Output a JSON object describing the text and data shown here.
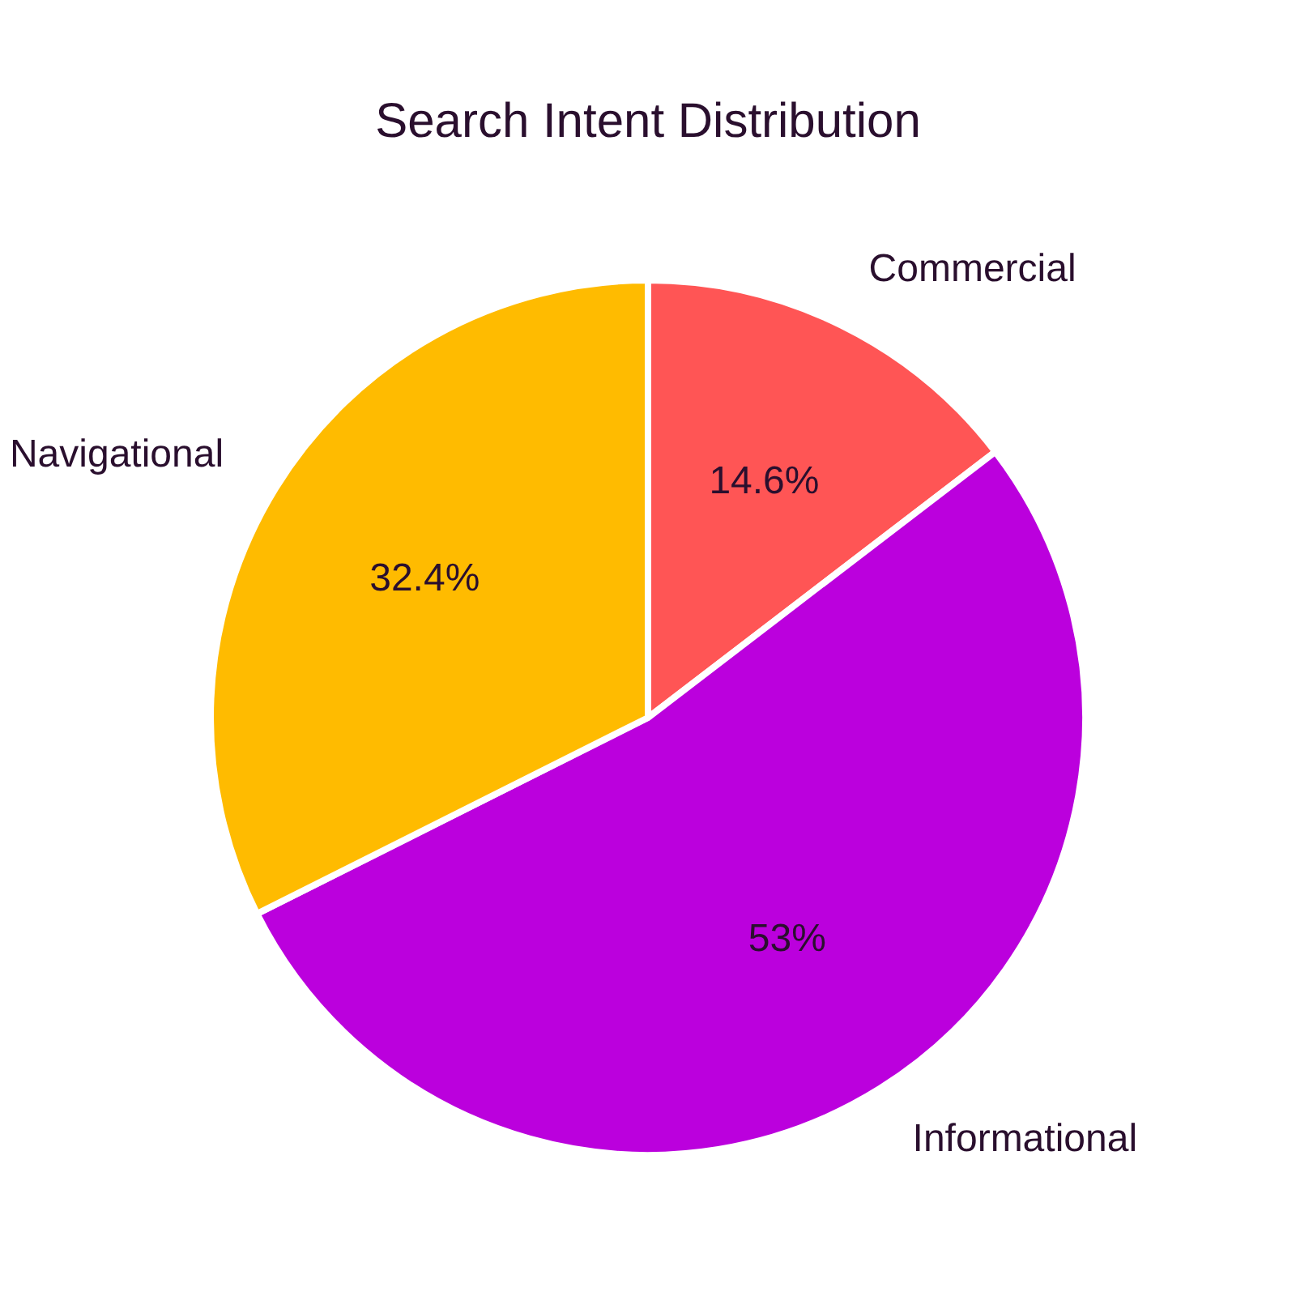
{
  "chart_data": {
    "type": "pie",
    "title": "Search Intent Distribution",
    "categories": [
      "Commercial",
      "Informational",
      "Navigational"
    ],
    "values": [
      14.6,
      53,
      32.4
    ],
    "value_labels": [
      "14.6%",
      "53%",
      "32.4%"
    ],
    "colors": [
      "#ff5555",
      "#bb00dd",
      "#ffbb00"
    ],
    "legend": false
  }
}
